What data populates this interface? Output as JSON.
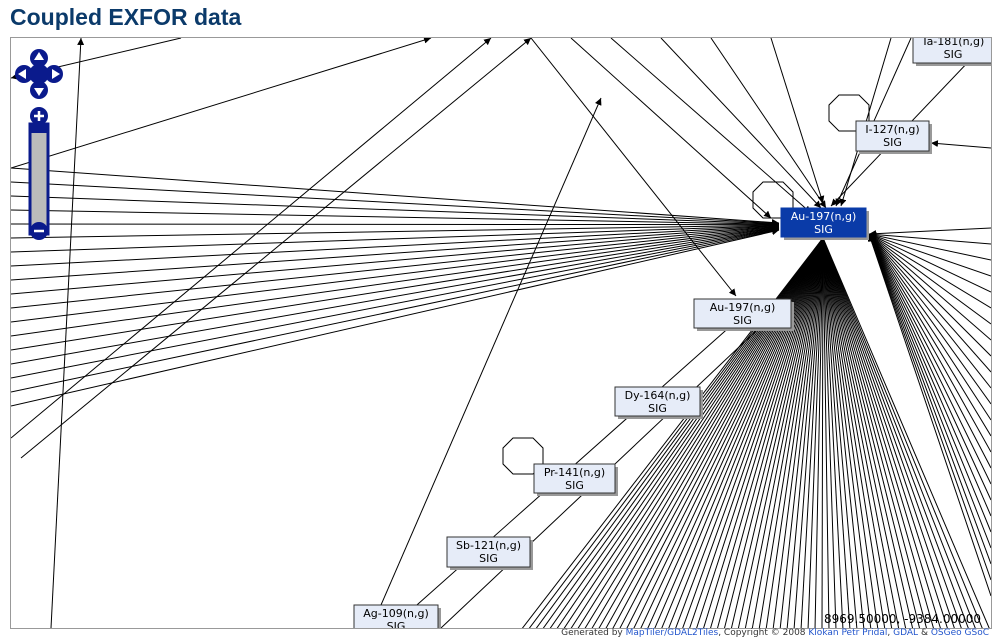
{
  "header": {
    "title": "Coupled EXFOR data"
  },
  "nodes": [
    {
      "label": "Au-197(n,g)",
      "sub": "SIG"
    },
    {
      "label": "Au-197(n,g)",
      "sub": "SIG"
    },
    {
      "label": "I-127(n,g)",
      "sub": "SIG"
    },
    {
      "label": "Ta-181(n,g)",
      "sub": "SIG"
    },
    {
      "label": "Dy-164(n,g)",
      "sub": "SIG"
    },
    {
      "label": "Pr-141(n,g)",
      "sub": "SIG"
    },
    {
      "label": "Sb-121(n,g)",
      "sub": "SIG"
    },
    {
      "label": "Ag-109(n,g)",
      "sub": "SIG"
    }
  ],
  "map": {
    "coordinates": "8969.50000, -9384.00000"
  },
  "footer": {
    "prefix": "Generated by",
    "link1": "MapTiler/GDAL2Tiles",
    "text1": ", Copyright © 2008",
    "link2": "Klokan Petr Pridal",
    "text2": ",",
    "link3": "GDAL",
    "text3": "&",
    "link4": "OSGeo GSoC"
  }
}
